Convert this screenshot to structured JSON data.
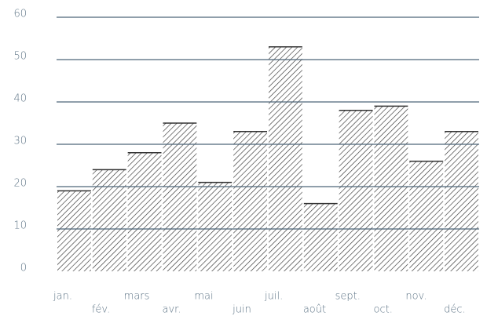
{
  "chart_data": {
    "type": "bar",
    "categories": [
      "jan.",
      "fév.",
      "mars",
      "avr.",
      "mai",
      "juin",
      "juil.",
      "août",
      "sept.",
      "oct.",
      "nov.",
      "déc."
    ],
    "values": [
      19,
      24,
      28,
      35,
      21,
      33,
      53,
      16,
      38,
      39,
      26,
      33
    ],
    "color": "#333333",
    "ylim": [
      0,
      60
    ],
    "yticks": [
      0,
      10,
      20,
      30,
      40,
      50,
      60
    ],
    "grid": true
  }
}
